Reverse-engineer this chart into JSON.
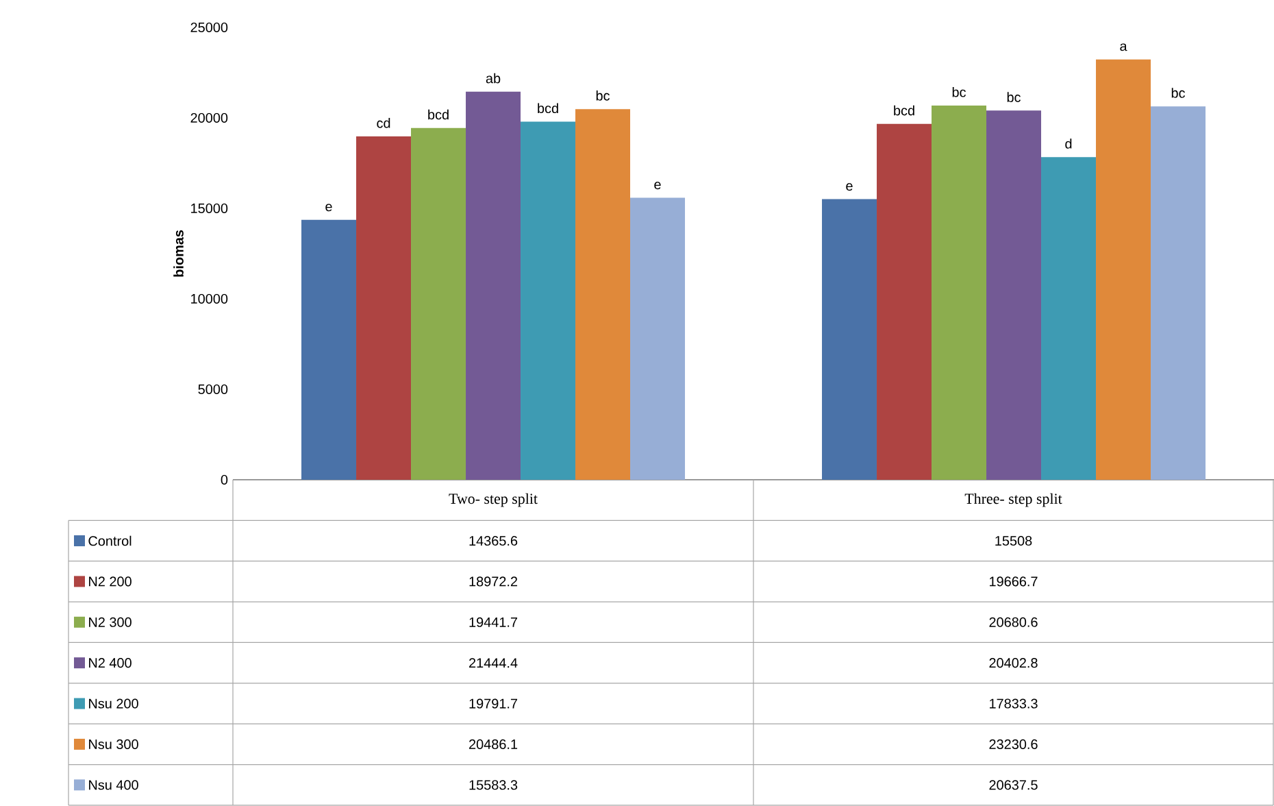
{
  "chart_data": {
    "type": "bar",
    "ylabel": "biomas",
    "categories": [
      "Two- step split",
      "Three- step split"
    ],
    "series": [
      {
        "name": "Control",
        "color": "#4a72a8",
        "values": [
          14365.6,
          15508
        ]
      },
      {
        "name": "N2 200",
        "color": "#ae4442",
        "values": [
          18972.2,
          19666.7
        ]
      },
      {
        "name": "N2 300",
        "color": "#8cad4e",
        "values": [
          19441.7,
          20680.6
        ]
      },
      {
        "name": "N2 400",
        "color": "#735a95",
        "values": [
          21444.4,
          20402.8
        ]
      },
      {
        "name": "Nsu 200",
        "color": "#3e9bb3",
        "values": [
          19791.7,
          17833.3
        ]
      },
      {
        "name": "Nsu 300",
        "color": "#e0893a",
        "values": [
          20486.1,
          23230.6
        ]
      },
      {
        "name": "Nsu 400",
        "color": "#97aed6",
        "values": [
          15583.3,
          20637.5
        ]
      }
    ],
    "ylim": [
      0,
      25000
    ],
    "yticks": [
      0,
      5000,
      10000,
      15000,
      20000,
      25000
    ],
    "data_labels": true,
    "legend": "bottom",
    "annotations": [
      "e",
      "cd",
      "bcd",
      "ab",
      "bcd",
      "bc",
      "e",
      "e",
      "bcd",
      "bc",
      "bc",
      "d",
      "a",
      "bc"
    ]
  }
}
